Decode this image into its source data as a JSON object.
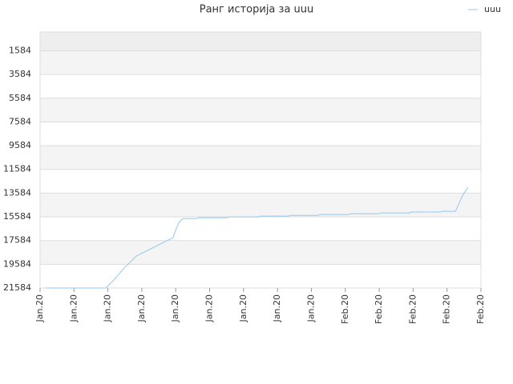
{
  "chart_data": {
    "type": "line",
    "title": "Ранг историја за uuu",
    "x": [
      0.17,
      1.94,
      2.13,
      2.48,
      2.84,
      3.92,
      4.02,
      4.11,
      4.21,
      4.61,
      4.68,
      5.53,
      5.58,
      6.43,
      6.48,
      7.33,
      7.38,
      8.2,
      8.25,
      9.1,
      9.15,
      10.0,
      10.05,
      10.9,
      10.94,
      11.8,
      11.84,
      12.25,
      12.46,
      12.62
    ],
    "series": [
      {
        "name": "uuu",
        "color": "#90c8f0",
        "values": [
          21584,
          21584,
          21046,
          19900,
          18890,
          17340,
          16540,
          16000,
          15730,
          15730,
          15660,
          15660,
          15590,
          15590,
          15520,
          15520,
          15460,
          15460,
          15390,
          15390,
          15320,
          15320,
          15250,
          15250,
          15180,
          15180,
          15120,
          15120,
          13770,
          13100
        ]
      }
    ],
    "ylim": [
      21584,
      0
    ],
    "yticks": [
      1584,
      3584,
      5584,
      7584,
      9584,
      11584,
      13584,
      15584,
      17584,
      19584,
      21584
    ],
    "xlim": [
      0,
      13
    ],
    "xticks": [
      {
        "value": 0,
        "label": "Jan.20"
      },
      {
        "value": 1,
        "label": "Jan.20"
      },
      {
        "value": 2,
        "label": "Jan.20"
      },
      {
        "value": 3,
        "label": "Jan.20"
      },
      {
        "value": 4,
        "label": "Jan.20"
      },
      {
        "value": 5,
        "label": "Jan.20"
      },
      {
        "value": 6,
        "label": "Jan.20"
      },
      {
        "value": 7,
        "label": "Jan.20"
      },
      {
        "value": 8,
        "label": "Jan.20"
      },
      {
        "value": 9,
        "label": "Feb.20"
      },
      {
        "value": 10,
        "label": "Feb.20"
      },
      {
        "value": 11,
        "label": "Feb.20"
      },
      {
        "value": 12,
        "label": "Feb.20"
      },
      {
        "value": 13,
        "label": "Feb.20"
      }
    ],
    "grid": true,
    "legend": "top-right"
  }
}
